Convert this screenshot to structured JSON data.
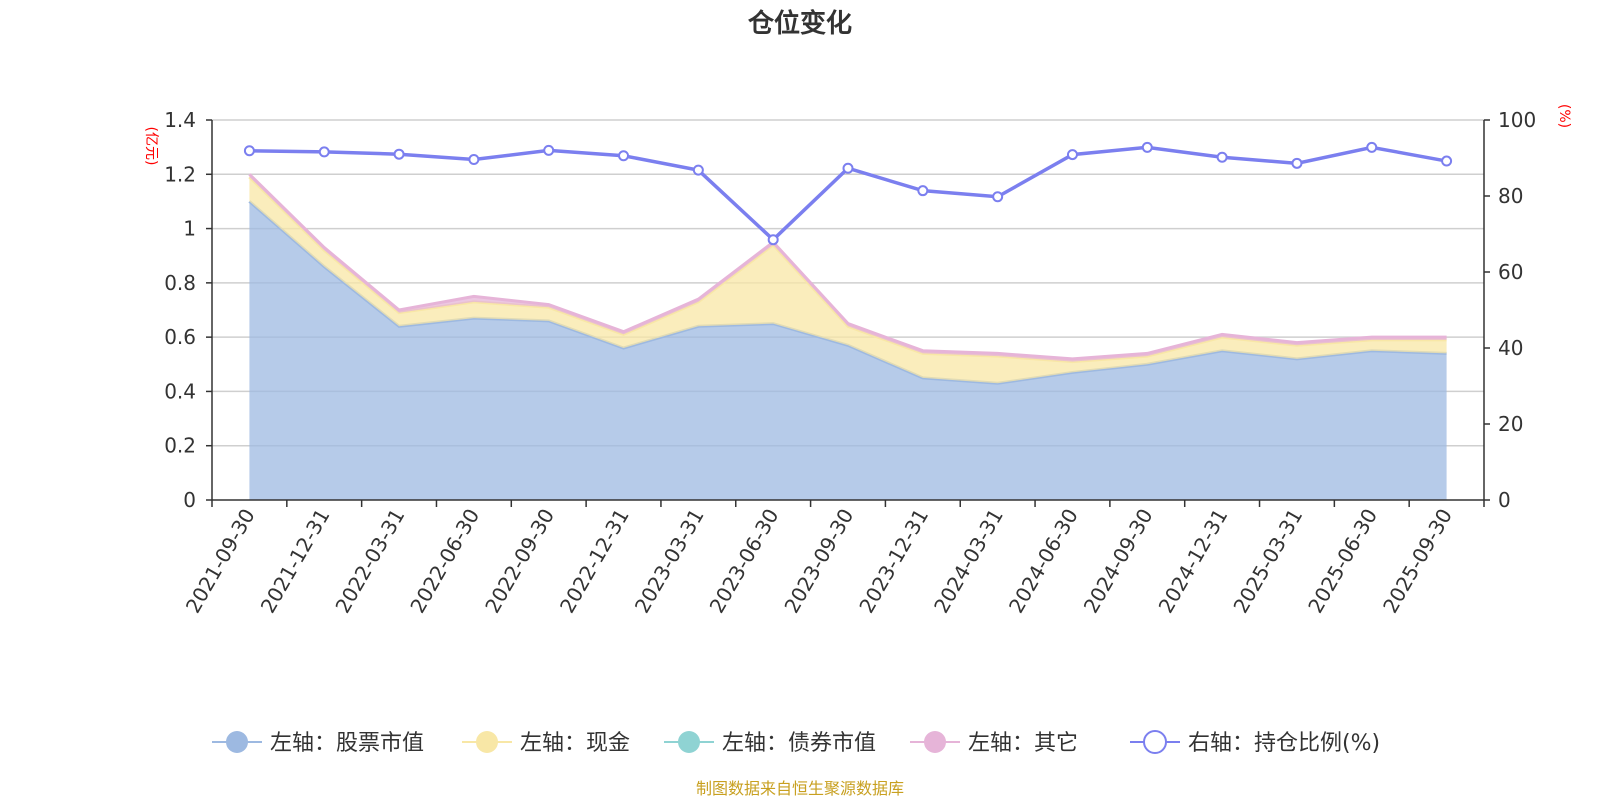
{
  "chart_data": {
    "type": "area",
    "title": "仓位变化",
    "left_axis_unit": "(亿元)",
    "right_axis_unit": "(%)",
    "categories": [
      "2021-09-30",
      "2021-12-31",
      "2022-03-31",
      "2022-06-30",
      "2022-09-30",
      "2022-12-31",
      "2023-03-31",
      "2023-06-30",
      "2023-09-30",
      "2023-12-31",
      "2024-03-31",
      "2024-06-30",
      "2024-09-30",
      "2024-12-31",
      "2025-03-31",
      "2025-06-30",
      "2025-09-30"
    ],
    "left_ylim": [
      0,
      1.4
    ],
    "left_ticks": [
      "0",
      "0.2",
      "0.4",
      "0.6",
      "0.8",
      "1",
      "1.2",
      "1.4"
    ],
    "right_ylim": [
      0,
      100
    ],
    "right_ticks": [
      "0",
      "20",
      "40",
      "60",
      "80",
      "100"
    ],
    "series": [
      {
        "name": "左轴：股票市值",
        "axis": "left",
        "stacked": true,
        "color": "#9db9e1",
        "values": [
          1.1,
          0.86,
          0.64,
          0.67,
          0.66,
          0.56,
          0.64,
          0.65,
          0.57,
          0.45,
          0.43,
          0.47,
          0.5,
          0.55,
          0.52,
          0.55,
          0.54
        ]
      },
      {
        "name": "左轴：现金",
        "axis": "left",
        "stacked": true,
        "color": "#f8e7a6",
        "values": [
          0.09,
          0.06,
          0.05,
          0.06,
          0.05,
          0.05,
          0.09,
          0.29,
          0.07,
          0.09,
          0.1,
          0.04,
          0.03,
          0.05,
          0.05,
          0.04,
          0.05
        ]
      },
      {
        "name": "左轴：债券市值",
        "axis": "left",
        "stacked": true,
        "color": "#8fd3d3",
        "values": [
          0,
          0,
          0,
          0,
          0,
          0,
          0,
          0,
          0,
          0,
          0,
          0,
          0,
          0,
          0,
          0,
          0
        ]
      },
      {
        "name": "左轴：其它",
        "axis": "left",
        "stacked": true,
        "color": "#e6b4d8",
        "values": [
          0.01,
          0.01,
          0.01,
          0.02,
          0.01,
          0.01,
          0.01,
          0.01,
          0.01,
          0.01,
          0.01,
          0.01,
          0.01,
          0.01,
          0.01,
          0.01,
          0.01
        ]
      },
      {
        "name": "右轴：持仓比例(%)",
        "axis": "right",
        "stacked": false,
        "color": "#7b7fef",
        "values": [
          91.9,
          91.6,
          91.0,
          89.6,
          92.0,
          90.6,
          86.8,
          68.5,
          87.3,
          81.4,
          79.8,
          90.9,
          92.8,
          90.2,
          88.6,
          92.8,
          89.2
        ]
      }
    ]
  },
  "source_note": "制图数据来自恒生聚源数据库"
}
